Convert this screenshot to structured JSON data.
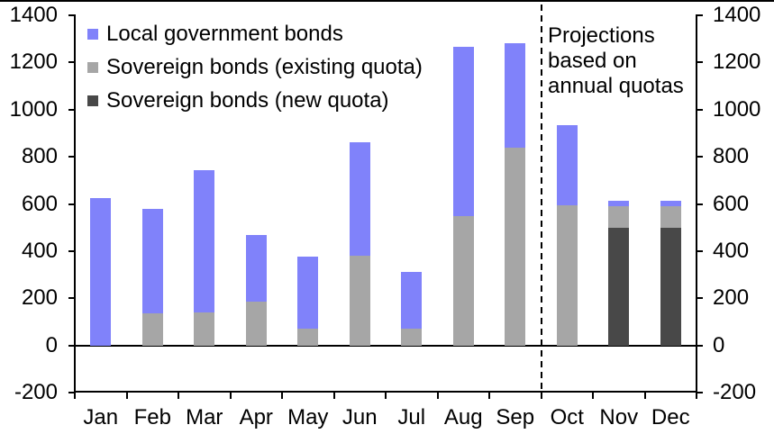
{
  "chart_data": {
    "type": "bar",
    "stacked": true,
    "title": "",
    "categories": [
      "Jan",
      "Feb",
      "Mar",
      "Apr",
      "May",
      "Jun",
      "Jul",
      "Aug",
      "Sep",
      "Oct",
      "Nov",
      "Dec"
    ],
    "series": [
      {
        "name": "Local government bonds",
        "color": "#8082fa",
        "values": [
          625,
          445,
          605,
          285,
          305,
          480,
          240,
          715,
          440,
          340,
          25,
          25
        ]
      },
      {
        "name": "Sovereign bonds (existing quota)",
        "color": "#a6a6a6",
        "values": [
          0,
          135,
          140,
          185,
          70,
          380,
          70,
          550,
          840,
          595,
          90,
          90
        ]
      },
      {
        "name": "Sovereign bonds (new quota)",
        "color": "#484848",
        "values": [
          0,
          0,
          0,
          0,
          0,
          0,
          0,
          0,
          0,
          0,
          500,
          500
        ]
      }
    ],
    "stack_order_bottom_to_top": [
      "Sovereign bonds (new quota)",
      "Sovereign bonds (existing quota)",
      "Local government bonds"
    ],
    "totals": [
      625,
      580,
      745,
      470,
      375,
      860,
      310,
      1265,
      1280,
      935,
      615,
      615
    ],
    "y_axis": {
      "min": -200,
      "max": 1400,
      "step": 200,
      "ticks": [
        -200,
        0,
        200,
        400,
        600,
        800,
        1000,
        1200,
        1400
      ],
      "sides": [
        "left",
        "right"
      ]
    },
    "annotation": {
      "text": "Projections\nbased on\nannual quotas",
      "divider_after_category": "Sep",
      "divider_style": "dashed"
    },
    "legend_position": "top-left",
    "grid": false,
    "colors": {
      "axis": "#000000",
      "background": "#ffffff"
    }
  }
}
